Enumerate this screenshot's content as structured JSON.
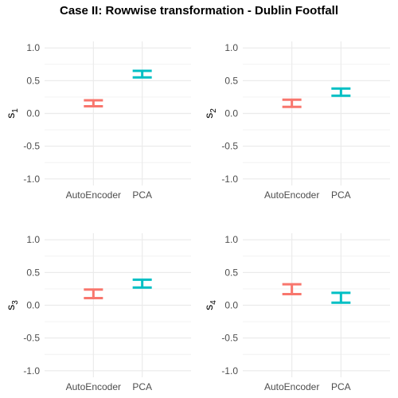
{
  "title": "Case II: Rowwise transformation - Dublin Footfall",
  "colors": {
    "AutoEncoder": "#F8766D",
    "PCA": "#00BFC4",
    "grid": "#ebebeb"
  },
  "chart_data": [
    {
      "type": "errorbar",
      "ylabel": "s",
      "ylabel_sub": "1",
      "categories": [
        "AutoEncoder",
        "PCA"
      ],
      "ylim": [
        -1.1,
        1.1
      ],
      "yticks": [
        -1.0,
        -0.5,
        0.0,
        0.5,
        1.0
      ],
      "ytick_labels": [
        "-1.0",
        "-0.5",
        "0.0",
        "0.5",
        "1.0"
      ],
      "intervals": [
        {
          "category": "AutoEncoder",
          "low": 0.11,
          "high": 0.2
        },
        {
          "category": "PCA",
          "low": 0.55,
          "high": 0.65
        }
      ]
    },
    {
      "type": "errorbar",
      "ylabel": "s",
      "ylabel_sub": "2",
      "categories": [
        "AutoEncoder",
        "PCA"
      ],
      "ylim": [
        -1.1,
        1.1
      ],
      "yticks": [
        -1.0,
        -0.5,
        0.0,
        0.5,
        1.0
      ],
      "ytick_labels": [
        "-1.0",
        "-0.5",
        "0.0",
        "0.5",
        "1.0"
      ],
      "intervals": [
        {
          "category": "AutoEncoder",
          "low": 0.1,
          "high": 0.21
        },
        {
          "category": "PCA",
          "low": 0.27,
          "high": 0.38
        }
      ]
    },
    {
      "type": "errorbar",
      "ylabel": "s",
      "ylabel_sub": "3",
      "categories": [
        "AutoEncoder",
        "PCA"
      ],
      "ylim": [
        -1.1,
        1.1
      ],
      "yticks": [
        -1.0,
        -0.5,
        0.0,
        0.5,
        1.0
      ],
      "ytick_labels": [
        "-1.0",
        "-0.5",
        "0.0",
        "0.5",
        "1.0"
      ],
      "intervals": [
        {
          "category": "AutoEncoder",
          "low": 0.11,
          "high": 0.24
        },
        {
          "category": "PCA",
          "low": 0.27,
          "high": 0.39
        }
      ]
    },
    {
      "type": "errorbar",
      "ylabel": "s",
      "ylabel_sub": "4",
      "categories": [
        "AutoEncoder",
        "PCA"
      ],
      "ylim": [
        -1.1,
        1.1
      ],
      "yticks": [
        -1.0,
        -0.5,
        0.0,
        0.5,
        1.0
      ],
      "ytick_labels": [
        "-1.0",
        "-0.5",
        "0.0",
        "0.5",
        "1.0"
      ],
      "intervals": [
        {
          "category": "AutoEncoder",
          "low": 0.17,
          "high": 0.32
        },
        {
          "category": "PCA",
          "low": 0.04,
          "high": 0.19
        }
      ]
    }
  ]
}
